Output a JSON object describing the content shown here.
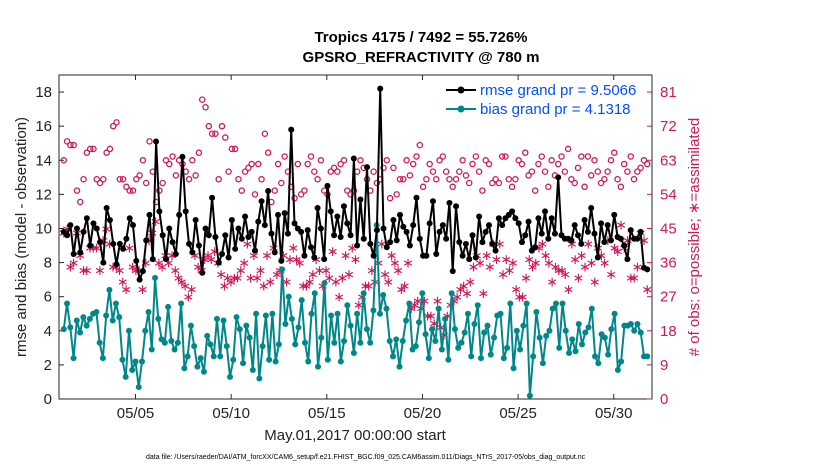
{
  "chart_data": {
    "type": "line",
    "title": "Tropics 4175 / 7492 = 55.726%",
    "subtitle": "GPSRO_REFRACTIVITY @ 780 m",
    "xlabel": "May.01,2017 00:00:00 start",
    "ylabel": "rmse and bias (model - observation)",
    "y2label": "# of obs: o=possible; ∗=assimilated",
    "footnote": "data file: /Users/raeder/DAI/ATM_forcXX/CAM6_setup/f.e21.FHIST_BGC.f09_025.CAM6assim.011/Diags_NTrS_2017-05/obs_diag_output.nc",
    "xlim": [
      1,
      32
    ],
    "ylim": [
      0,
      19
    ],
    "y2lim": [
      0,
      85.5
    ],
    "x_ticks": [
      5,
      10,
      15,
      20,
      25,
      30
    ],
    "x_tick_labels": [
      "05/05",
      "05/10",
      "05/15",
      "05/20",
      "05/25",
      "05/30"
    ],
    "y_ticks": [
      0,
      2,
      4,
      6,
      8,
      10,
      12,
      14,
      16,
      18
    ],
    "y2_ticks": [
      0,
      9,
      18,
      27,
      36,
      45,
      54,
      63,
      72,
      81
    ],
    "legend_position": "top-right",
    "colors": {
      "rmse": "#000000",
      "bias": "#00878a",
      "obs": "#d0185a",
      "legend_text": "#0050ff",
      "axis2": "#d0185a"
    },
    "series": [
      {
        "name": "rmse grand pr = 9.5066",
        "values": [
          9.8,
          9.6,
          10.2,
          8.5,
          10.0,
          8.6,
          9.8,
          10.6,
          9.0,
          10.3,
          10.0,
          9.2,
          8.0,
          11.2,
          10.5,
          9.1,
          7.9,
          9.1,
          8.8,
          9.4,
          10.6,
          10.2,
          8.1,
          7.0,
          7.5,
          9.3,
          10.8,
          8.2,
          15.1,
          11.0,
          9.6,
          8.2,
          10.0,
          9.2,
          8.5,
          10.8,
          14.2,
          11.0,
          9.1,
          8.6,
          10.5,
          9.0,
          7.4,
          10.0,
          9.6,
          11.8,
          9.5,
          8.0,
          8.5,
          9.6,
          8.3,
          10.5,
          8.8,
          10.0,
          9.4,
          10.7,
          9.5,
          9.8,
          8.7,
          10.4,
          11.6,
          10.2,
          12.2,
          9.7,
          8.6,
          10.8,
          8.1,
          10.9,
          9.7,
          15.8,
          10.3,
          10.0,
          9.8,
          8.4,
          9.9,
          8.9,
          8.3,
          11.2,
          10.0,
          8.2,
          12.5,
          11.0,
          9.6,
          10.7,
          9.5,
          11.3,
          10.3,
          9.6,
          14.1,
          9.0,
          11.7,
          9.4,
          13.6,
          9.1,
          8.4,
          9.9,
          18.2,
          10.0,
          8.9,
          9.2,
          10.5,
          9.3,
          10.8,
          10.1,
          9.8,
          9.0,
          10.2,
          11.8,
          9.4,
          8.4,
          8.4,
          10.3,
          11.6,
          8.5,
          9.8,
          10.2,
          9.4,
          11.5,
          7.5,
          11.3,
          9.2,
          8.4,
          9.1,
          8.2,
          9.6,
          8.3,
          10.7,
          9.2,
          9.8,
          10.2,
          9.1,
          8.7,
          10.6,
          10.2,
          10.6,
          10.8,
          11.0,
          10.6,
          10.3,
          9.2,
          9.6,
          10.4,
          8.7,
          8.9,
          10.6,
          9.7,
          11.0,
          9.4,
          10.6,
          9.7,
          13.0,
          9.6,
          9.4,
          9.4,
          9.3,
          10.2,
          9.6,
          9.1,
          10.5,
          9.8,
          11.2,
          9.7,
          8.3,
          10.3,
          9.2,
          10.2,
          9.3,
          10.8,
          9.5,
          9.4,
          9.0,
          8.2,
          9.9,
          9.4,
          9.4,
          9.8,
          7.7,
          7.6
        ]
      },
      {
        "name": "bias grand pr = 4.1318",
        "values": [
          4.1,
          5.6,
          4.2,
          2.4,
          4.6,
          3.9,
          4.8,
          4.3,
          4.7,
          5.0,
          5.1,
          3.3,
          2.4,
          4.9,
          6.4,
          4.6,
          5.6,
          4.8,
          2.3,
          1.3,
          4.0,
          1.7,
          2.2,
          0.7,
          2.2,
          4.0,
          5.1,
          2.9,
          7.1,
          4.7,
          3.5,
          3.3,
          5.4,
          3.4,
          2.9,
          3.3,
          5.6,
          1.8,
          2.5,
          4.3,
          3.1,
          1.9,
          2.4,
          1.6,
          3.7,
          3.2,
          2.5,
          4.7,
          2.5,
          4.6,
          3.1,
          1.3,
          2.3,
          4.8,
          4.1,
          2.1,
          4.3,
          3.6,
          1.7,
          5.0,
          1.2,
          3.1,
          4.9,
          2.3,
          5.0,
          2.2,
          3.2,
          7.6,
          4.4,
          6.0,
          4.7,
          3.2,
          4.2,
          5.8,
          3.3,
          2.2,
          5.0,
          6.2,
          1.9,
          3.6,
          6.8,
          2.3,
          4.9,
          3.3,
          5.0,
          2.2,
          3.4,
          5.5,
          4.3,
          2.7,
          5.0,
          3.3,
          6.2,
          4.1,
          3.3,
          5.2,
          10.2,
          5.0,
          6.1,
          5.3,
          3.4,
          2.5,
          3.5,
          1.9,
          3.4,
          4.6,
          5.6,
          2.9,
          3.1,
          4.5,
          6.2,
          3.8,
          2.4,
          4.1,
          3.4,
          5.3,
          2.9,
          4.7,
          2.3,
          6.2,
          4.1,
          3.0,
          3.3,
          3.9,
          5.0,
          2.5,
          4.4,
          5.5,
          2.4,
          3.9,
          4.3,
          2.6,
          3.6,
          4.9,
          5.0,
          2.4,
          3.0,
          5.6,
          1.8,
          4.0,
          2.9,
          4.3,
          5.6,
          0.2,
          2.5,
          5.1,
          3.6,
          2.1,
          3.7,
          4.0,
          5.3,
          5.6,
          3.0,
          5.6,
          4.0,
          2.7,
          3.5,
          2.8,
          4.4,
          3.2,
          3.9,
          4.2,
          5.3,
          2.5,
          2.1,
          3.8,
          3.6,
          2.6,
          4.1,
          5.0,
          1.7,
          2.2,
          4.3,
          4.3,
          4.4,
          4.0,
          4.4,
          3.9,
          2.5,
          2.5
        ]
      },
      {
        "name": "possible",
        "axis": "right",
        "values": [
          63,
          68,
          67,
          67,
          55,
          52,
          58,
          65,
          66,
          66,
          58,
          57,
          58,
          65,
          66,
          72,
          73,
          58,
          58,
          56,
          55,
          55,
          58,
          59,
          63,
          57,
          68,
          60,
          52,
          55,
          57,
          63,
          62,
          64,
          59,
          63,
          62,
          60,
          58,
          63,
          59,
          65,
          79,
          77,
          72,
          70,
          70,
          58,
          72,
          69,
          60,
          66,
          66,
          58,
          55,
          60,
          61,
          62,
          54,
          62,
          58,
          70,
          65,
          52,
          55,
          62,
          57,
          64,
          60,
          56,
          53,
          62,
          54,
          55,
          62,
          64,
          60,
          58,
          63,
          55,
          54,
          60,
          61,
          60,
          62,
          63,
          55,
          54,
          55,
          60,
          63,
          61,
          58,
          55,
          60,
          57,
          58,
          61,
          63,
          53,
          61,
          54,
          58,
          58,
          63,
          59,
          62,
          64,
          67,
          56,
          58,
          62,
          60,
          58,
          63,
          64,
          60,
          58,
          56,
          58,
          60,
          63,
          59,
          57,
          62,
          64,
          60,
          55,
          63,
          62,
          57,
          58,
          57,
          64,
          64,
          58,
          56,
          58,
          63,
          62,
          65,
          59,
          60,
          55,
          62,
          64,
          60,
          56,
          63,
          59,
          62,
          64,
          60,
          66,
          58,
          57,
          61,
          64,
          56,
          64,
          59,
          63,
          60,
          57,
          58,
          60,
          63,
          65,
          58,
          56,
          62,
          60,
          64,
          58,
          60,
          61,
          63,
          62
        ]
      },
      {
        "name": "assimilated",
        "axis": "right",
        "values": [
          44,
          45,
          35,
          36,
          44,
          38,
          34,
          34,
          40,
          40,
          40,
          34,
          42,
          45,
          41,
          35,
          35,
          34,
          31,
          29,
          40,
          35,
          34,
          34,
          29,
          36,
          42,
          44,
          47,
          36,
          35,
          38,
          36,
          38,
          34,
          32,
          31,
          30,
          27,
          29,
          38,
          35,
          34,
          37,
          38,
          37,
          39,
          36,
          33,
          30,
          32,
          31,
          32,
          32,
          34,
          36,
          41,
          32,
          38,
          32,
          34,
          30,
          38,
          31,
          40,
          33,
          34,
          38,
          31,
          37,
          40,
          37,
          36,
          30,
          30,
          31,
          33,
          37,
          34,
          30,
          34,
          32,
          39,
          31,
          27,
          32,
          38,
          33,
          40,
          37,
          25,
          27,
          30,
          30,
          34,
          31,
          36,
          41,
          33,
          31,
          38,
          36,
          34,
          29,
          30,
          36,
          24,
          25,
          26,
          24,
          26,
          22,
          22,
          20,
          26,
          19,
          17,
          22,
          25,
          26,
          27,
          29,
          30,
          28,
          31,
          35,
          38,
          36,
          28,
          38,
          35,
          41,
          37,
          41,
          33,
          37,
          34,
          36,
          29,
          27,
          27,
          32,
          37,
          35,
          36,
          40,
          41,
          38,
          36,
          31,
          35,
          34,
          34,
          33,
          29,
          41,
          37,
          32,
          38,
          35,
          41,
          36,
          31,
          40,
          38,
          36,
          42,
          33,
          40,
          39,
          46,
          40,
          42,
          32,
          32,
          35,
          44,
          42,
          29
        ]
      }
    ]
  }
}
